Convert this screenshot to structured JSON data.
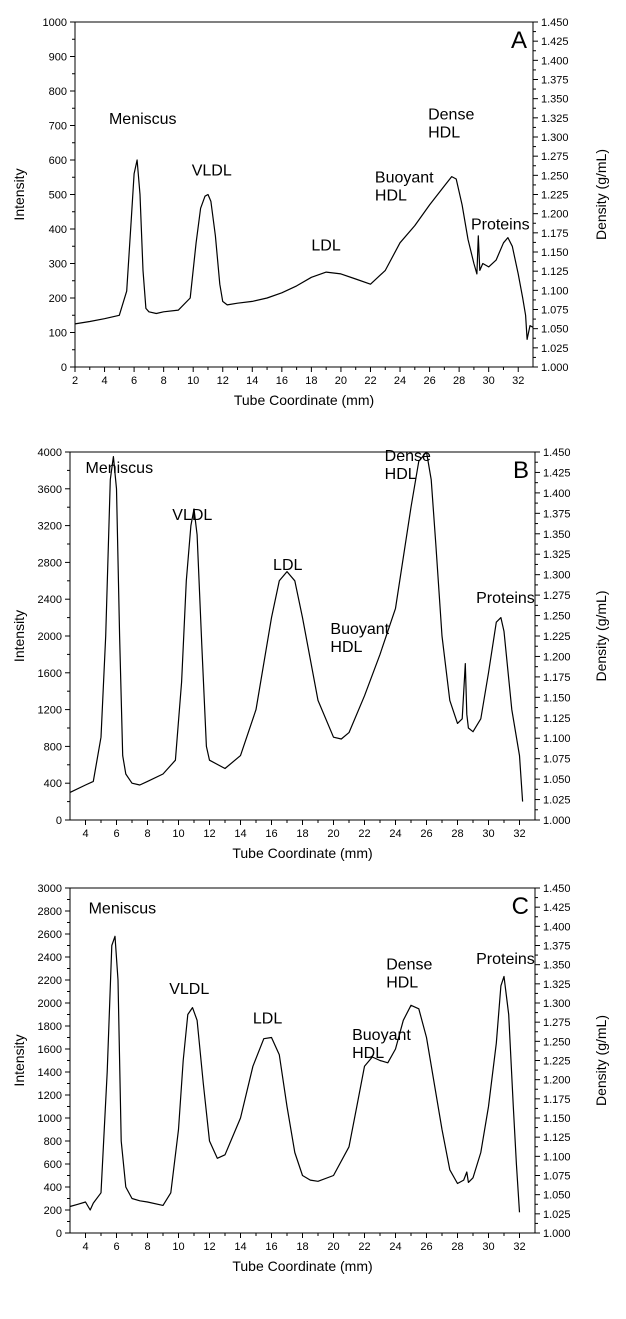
{
  "chart_data": [
    {
      "type": "line",
      "panel_label": "A",
      "xlabel": "Tube Coordinate (mm)",
      "ylabel": "Intensity",
      "y2label": "Density (g/mL)",
      "xlim": [
        2,
        33
      ],
      "ylim": [
        0,
        1000
      ],
      "y2lim": [
        1.0,
        1.45
      ],
      "xticks": [
        "2",
        "4",
        "6",
        "8",
        "10",
        "12",
        "14",
        "16",
        "18",
        "20",
        "22",
        "24",
        "26",
        "28",
        "30",
        "32"
      ],
      "xtick_values": [
        2,
        4,
        6,
        8,
        10,
        12,
        14,
        16,
        18,
        20,
        22,
        24,
        26,
        28,
        30,
        32
      ],
      "yticks": [
        "0",
        "100",
        "200",
        "300",
        "400",
        "500",
        "600",
        "700",
        "800",
        "900",
        "1000"
      ],
      "ytick_values": [
        0,
        100,
        200,
        300,
        400,
        500,
        600,
        700,
        800,
        900,
        1000
      ],
      "y2ticks": [
        "1.000",
        "1.025",
        "1.050",
        "1.075",
        "1.100",
        "1.125",
        "1.150",
        "1.175",
        "1.200",
        "1.225",
        "1.250",
        "1.275",
        "1.300",
        "1.325",
        "1.350",
        "1.375",
        "1.400",
        "1.425",
        "1.450"
      ],
      "annotations": [
        {
          "lines": [
            "Meniscus"
          ],
          "x": 4.3,
          "y": 705
        },
        {
          "lines": [
            "VLDL"
          ],
          "x": 9.9,
          "y": 555
        },
        {
          "lines": [
            "LDL"
          ],
          "x": 18.0,
          "y": 338
        },
        {
          "lines": [
            "Buoyant",
            "HDL"
          ],
          "x": 22.3,
          "y": 535
        },
        {
          "lines": [
            "Dense",
            "HDL"
          ],
          "x": 25.9,
          "y": 718
        },
        {
          "lines": [
            "Proteins"
          ],
          "x": 28.8,
          "y": 398
        }
      ],
      "series": [
        {
          "x": [
            2.0,
            3.0,
            4.0,
            5.0,
            5.5,
            5.8,
            6.0,
            6.2,
            6.4,
            6.6,
            6.8,
            7.0,
            7.5,
            8.0,
            9.0,
            9.8,
            10.2,
            10.5,
            10.8,
            11.0,
            11.2,
            11.5,
            11.8,
            12.0,
            12.3,
            13.0,
            14.0,
            15.0,
            16.0,
            17.0,
            18.0,
            19.0,
            20.0,
            21.0,
            22.0,
            23.0,
            24.0,
            25.0,
            26.0,
            27.0,
            27.5,
            27.8,
            28.2,
            28.6,
            29.0,
            29.2,
            29.3,
            29.4,
            29.6,
            30.0,
            30.5,
            31.0,
            31.3,
            31.6,
            32.0,
            32.3,
            32.5,
            32.6,
            32.8,
            33.0
          ],
          "y": [
            125,
            132,
            140,
            150,
            220,
            420,
            560,
            600,
            500,
            280,
            170,
            160,
            155,
            160,
            165,
            200,
            360,
            460,
            495,
            500,
            480,
            380,
            240,
            190,
            180,
            185,
            190,
            200,
            215,
            235,
            260,
            275,
            270,
            255,
            240,
            280,
            360,
            410,
            470,
            525,
            552,
            545,
            470,
            370,
            300,
            270,
            380,
            280,
            300,
            290,
            310,
            360,
            375,
            350,
            270,
            200,
            150,
            80,
            120,
            115
          ]
        }
      ]
    },
    {
      "type": "line",
      "panel_label": "B",
      "xlabel": "Tube Coordinate (mm)",
      "ylabel": "Intensity",
      "y2label": "Density (g/mL)",
      "xlim": [
        3,
        33
      ],
      "ylim": [
        0,
        4000
      ],
      "y2lim": [
        1.0,
        1.45
      ],
      "xticks": [
        "4",
        "6",
        "8",
        "10",
        "12",
        "14",
        "16",
        "18",
        "20",
        "22",
        "24",
        "26",
        "28",
        "30",
        "32"
      ],
      "xtick_values": [
        4,
        6,
        8,
        10,
        12,
        14,
        16,
        18,
        20,
        22,
        24,
        26,
        28,
        30,
        32
      ],
      "yticks": [
        "0",
        "400",
        "800",
        "1200",
        "1600",
        "2000",
        "2400",
        "2800",
        "3200",
        "3600",
        "4000"
      ],
      "ytick_values": [
        0,
        400,
        800,
        1200,
        1600,
        2000,
        2400,
        2800,
        3200,
        3600,
        4000
      ],
      "y2ticks": [
        "1.000",
        "1.025",
        "1.050",
        "1.075",
        "1.100",
        "1.125",
        "1.150",
        "1.175",
        "1.200",
        "1.225",
        "1.250",
        "1.275",
        "1.300",
        "1.325",
        "1.350",
        "1.375",
        "1.400",
        "1.425",
        "1.450"
      ],
      "annotations": [
        {
          "lines": [
            "Meniscus"
          ],
          "x": 4.0,
          "y": 3770
        },
        {
          "lines": [
            "VLDL"
          ],
          "x": 9.6,
          "y": 3260
        },
        {
          "lines": [
            "LDL"
          ],
          "x": 16.1,
          "y": 2720
        },
        {
          "lines": [
            "Buoyant",
            "HDL"
          ],
          "x": 19.8,
          "y": 2020
        },
        {
          "lines": [
            "Dense",
            "HDL"
          ],
          "x": 23.3,
          "y": 3900
        },
        {
          "lines": [
            "Proteins"
          ],
          "x": 29.2,
          "y": 2360
        }
      ],
      "series": [
        {
          "x": [
            3.0,
            4.0,
            4.5,
            5.0,
            5.3,
            5.6,
            5.8,
            6.0,
            6.2,
            6.4,
            6.6,
            7.0,
            7.5,
            8.0,
            9.0,
            9.8,
            10.2,
            10.5,
            10.8,
            11.0,
            11.2,
            11.5,
            11.8,
            12.0,
            13.0,
            14.0,
            15.0,
            16.0,
            16.5,
            17.0,
            17.5,
            18.0,
            19.0,
            20.0,
            20.5,
            21.0,
            22.0,
            23.0,
            24.0,
            25.0,
            25.5,
            26.0,
            26.3,
            26.6,
            27.0,
            27.5,
            28.0,
            28.3,
            28.5,
            28.6,
            28.7,
            29.0,
            29.5,
            30.0,
            30.5,
            30.8,
            31.0,
            31.5,
            32.0,
            32.2
          ],
          "y": [
            300,
            380,
            420,
            900,
            2000,
            3700,
            3950,
            3600,
            2000,
            700,
            500,
            400,
            380,
            420,
            500,
            650,
            1500,
            2600,
            3200,
            3380,
            3100,
            1900,
            800,
            650,
            560,
            700,
            1200,
            2200,
            2600,
            2700,
            2600,
            2200,
            1300,
            900,
            880,
            950,
            1350,
            1800,
            2300,
            3400,
            3900,
            4000,
            3700,
            3000,
            2000,
            1300,
            1050,
            1100,
            1700,
            1150,
            1000,
            960,
            1100,
            1600,
            2150,
            2200,
            2050,
            1200,
            700,
            200
          ]
        }
      ]
    },
    {
      "type": "line",
      "panel_label": "C",
      "xlabel": "Tube Coordinate (mm)",
      "ylabel": "Intensity",
      "y2label": "Density (g/mL)",
      "xlim": [
        3,
        33
      ],
      "ylim": [
        0,
        3000
      ],
      "y2lim": [
        1.0,
        1.45
      ],
      "xticks": [
        "4",
        "6",
        "8",
        "10",
        "12",
        "14",
        "16",
        "18",
        "20",
        "22",
        "24",
        "26",
        "28",
        "30",
        "32"
      ],
      "xtick_values": [
        4,
        6,
        8,
        10,
        12,
        14,
        16,
        18,
        20,
        22,
        24,
        26,
        28,
        30,
        32
      ],
      "yticks": [
        "0",
        "200",
        "400",
        "600",
        "800",
        "1000",
        "1200",
        "1400",
        "1600",
        "1800",
        "2000",
        "2200",
        "2400",
        "2600",
        "2800",
        "3000"
      ],
      "ytick_values": [
        0,
        200,
        400,
        600,
        800,
        1000,
        1200,
        1400,
        1600,
        1800,
        2000,
        2200,
        2400,
        2600,
        2800,
        3000
      ],
      "y2ticks": [
        "1.000",
        "1.025",
        "1.050",
        "1.075",
        "1.100",
        "1.125",
        "1.150",
        "1.175",
        "1.200",
        "1.225",
        "1.250",
        "1.275",
        "1.300",
        "1.325",
        "1.350",
        "1.375",
        "1.400",
        "1.425",
        "1.450"
      ],
      "annotations": [
        {
          "lines": [
            "Meniscus"
          ],
          "x": 4.2,
          "y": 2780
        },
        {
          "lines": [
            "VLDL"
          ],
          "x": 9.4,
          "y": 2080
        },
        {
          "lines": [
            "LDL"
          ],
          "x": 14.8,
          "y": 1820
        },
        {
          "lines": [
            "Buoyant",
            "HDL"
          ],
          "x": 21.2,
          "y": 1680
        },
        {
          "lines": [
            "Dense",
            "HDL"
          ],
          "x": 23.4,
          "y": 2290
        },
        {
          "lines": [
            "Proteins"
          ],
          "x": 29.2,
          "y": 2340
        }
      ],
      "series": [
        {
          "x": [
            3.0,
            3.5,
            4.0,
            4.3,
            4.5,
            5.0,
            5.4,
            5.7,
            5.9,
            6.1,
            6.3,
            6.6,
            7.0,
            7.5,
            8.0,
            9.0,
            9.5,
            10.0,
            10.3,
            10.6,
            10.9,
            11.2,
            11.6,
            12.0,
            12.5,
            13.0,
            14.0,
            14.8,
            15.5,
            16.0,
            16.5,
            17.0,
            17.5,
            18.0,
            18.5,
            19.0,
            20.0,
            21.0,
            21.5,
            22.0,
            22.5,
            23.0,
            23.5,
            24.0,
            24.5,
            25.0,
            25.5,
            26.0,
            27.0,
            27.5,
            28.0,
            28.4,
            28.6,
            28.7,
            29.0,
            29.5,
            30.0,
            30.5,
            30.8,
            31.0,
            31.3,
            31.6,
            31.8,
            32.0
          ],
          "y": [
            230,
            250,
            270,
            200,
            260,
            350,
            1400,
            2500,
            2580,
            2200,
            800,
            400,
            300,
            280,
            270,
            240,
            350,
            900,
            1500,
            1900,
            1960,
            1850,
            1300,
            800,
            650,
            680,
            1000,
            1450,
            1690,
            1700,
            1550,
            1100,
            700,
            500,
            460,
            450,
            500,
            750,
            1100,
            1450,
            1530,
            1500,
            1480,
            1600,
            1850,
            1980,
            1950,
            1700,
            900,
            550,
            430,
            460,
            530,
            440,
            480,
            700,
            1100,
            1650,
            2150,
            2230,
            1900,
            1100,
            600,
            180
          ]
        }
      ]
    }
  ]
}
